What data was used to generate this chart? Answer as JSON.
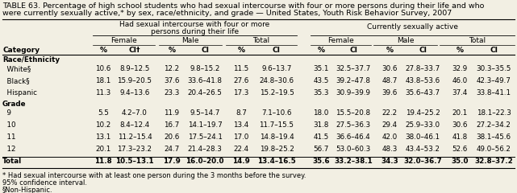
{
  "title_line1": "TABLE 63. Percentage of high school students who had sexual intercourse with four or more persons during their life and who",
  "title_line2": "were currently sexually active,* by sex, race/ethnicity, and grade — United States, Youth Risk Behavior Survey, 2007",
  "col_group1": "Had sexual intercourse with four or more\npersons during their life",
  "col_group2": "Currently sexually active",
  "bg_color": "#f2efe3",
  "font_size_title": 6.8,
  "font_size_header": 6.5,
  "font_size_data": 6.3,
  "font_size_footnote": 6.0,
  "rows": [
    {
      "label": "Race/Ethnicity",
      "section": true,
      "vals": []
    },
    {
      "label": "  White§",
      "bold": false,
      "vals": [
        "10.6",
        "8.9–12.5",
        "12.2",
        "9.8–15.2",
        "11.5",
        "9.6–13.7",
        "35.1",
        "32.5–37.7",
        "30.6",
        "27.8–33.7",
        "32.9",
        "30.3–35.5"
      ]
    },
    {
      "label": "  Black§",
      "bold": false,
      "vals": [
        "18.1",
        "15.9–20.5",
        "37.6",
        "33.6–41.8",
        "27.6",
        "24.8–30.6",
        "43.5",
        "39.2–47.8",
        "48.7",
        "43.8–53.6",
        "46.0",
        "42.3–49.7"
      ]
    },
    {
      "label": "  Hispanic",
      "bold": false,
      "vals": [
        "11.3",
        "9.4–13.6",
        "23.3",
        "20.4–26.5",
        "17.3",
        "15.2–19.5",
        "35.3",
        "30.9–39.9",
        "39.6",
        "35.6–43.7",
        "37.4",
        "33.8–41.1"
      ]
    },
    {
      "label": "Grade",
      "section": true,
      "vals": []
    },
    {
      "label": "  9",
      "bold": false,
      "vals": [
        "5.5",
        "4.2–7.0",
        "11.9",
        "9.5–14.7",
        "8.7",
        "7.1–10.6",
        "18.0",
        "15.5–20.8",
        "22.2",
        "19.4–25.2",
        "20.1",
        "18.1–22.3"
      ]
    },
    {
      "label": "  10",
      "bold": false,
      "vals": [
        "10.2",
        "8.4–12.4",
        "16.7",
        "14.1–19.7",
        "13.4",
        "11.7–15.5",
        "31.8",
        "27.5–36.3",
        "29.4",
        "25.9–33.0",
        "30.6",
        "27.2–34.2"
      ]
    },
    {
      "label": "  11",
      "bold": false,
      "vals": [
        "13.1",
        "11.2–15.4",
        "20.6",
        "17.5–24.1",
        "17.0",
        "14.8–19.4",
        "41.5",
        "36.6–46.4",
        "42.0",
        "38.0–46.1",
        "41.8",
        "38.1–45.6"
      ]
    },
    {
      "label": "  12",
      "bold": false,
      "vals": [
        "20.1",
        "17.3–23.2",
        "24.7",
        "21.4–28.3",
        "22.4",
        "19.8–25.2",
        "56.7",
        "53.0–60.3",
        "48.3",
        "43.4–53.2",
        "52.6",
        "49.0–56.2"
      ]
    },
    {
      "label": "Total",
      "bold": true,
      "vals": [
        "11.8",
        "10.5–13.1",
        "17.9",
        "16.0–20.0",
        "14.9",
        "13.4–16.5",
        "35.6",
        "33.2–38.1",
        "34.3",
        "32.0–36.7",
        "35.0",
        "32.8–37.2"
      ]
    }
  ],
  "footnotes": [
    "* Had sexual intercourse with at least one person during the 3 months before the survey.",
    " 95% confidence interval.",
    "§Non-Hispanic."
  ]
}
